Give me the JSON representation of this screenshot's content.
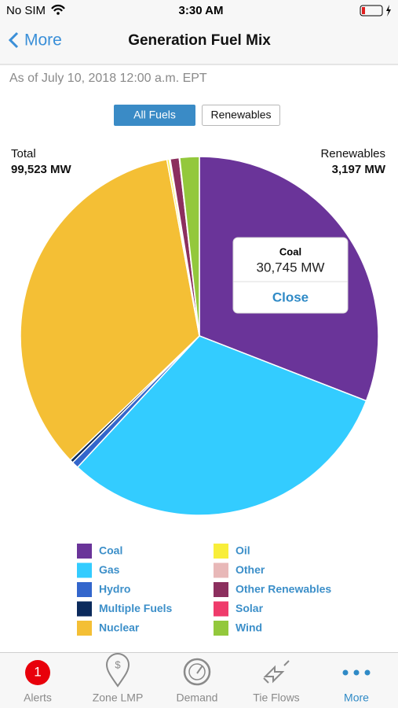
{
  "status_bar": {
    "carrier": "No SIM",
    "time": "3:30 AM"
  },
  "nav": {
    "back": "More",
    "title": "Generation Fuel Mix"
  },
  "timestamp": "As of July 10, 2018 12:00 a.m. EPT",
  "toggle": [
    "All Fuels",
    "Renewables"
  ],
  "totals": {
    "total_label": "Total",
    "total_value": "99,523 MW",
    "renewables_label": "Renewables",
    "renewables_value": "3,197 MW"
  },
  "tooltip": {
    "title": "Coal",
    "value": "30,745 MW",
    "button": "Close"
  },
  "chart_data": {
    "type": "pie",
    "categories": [
      "Coal",
      "Gas",
      "Hydro",
      "Multiple Fuels",
      "Nuclear",
      "Oil",
      "Other",
      "Other Renewables",
      "Solar",
      "Wind"
    ],
    "values": [
      30745,
      30881,
      600,
      300,
      34100,
      200,
      100,
      800,
      50,
      1747
    ],
    "colors": [
      "#6a3499",
      "#33ccff",
      "#3366cc",
      "#0b2a5c",
      "#f4bf35",
      "#f8ee3a",
      "#e8b8b8",
      "#8c2f5e",
      "#ef3b6b",
      "#93c83c"
    ]
  },
  "tab_bar": {
    "badge": "1",
    "tabs": [
      "Alerts",
      "Zone LMP",
      "Demand",
      "Tie Flows",
      "More"
    ]
  }
}
